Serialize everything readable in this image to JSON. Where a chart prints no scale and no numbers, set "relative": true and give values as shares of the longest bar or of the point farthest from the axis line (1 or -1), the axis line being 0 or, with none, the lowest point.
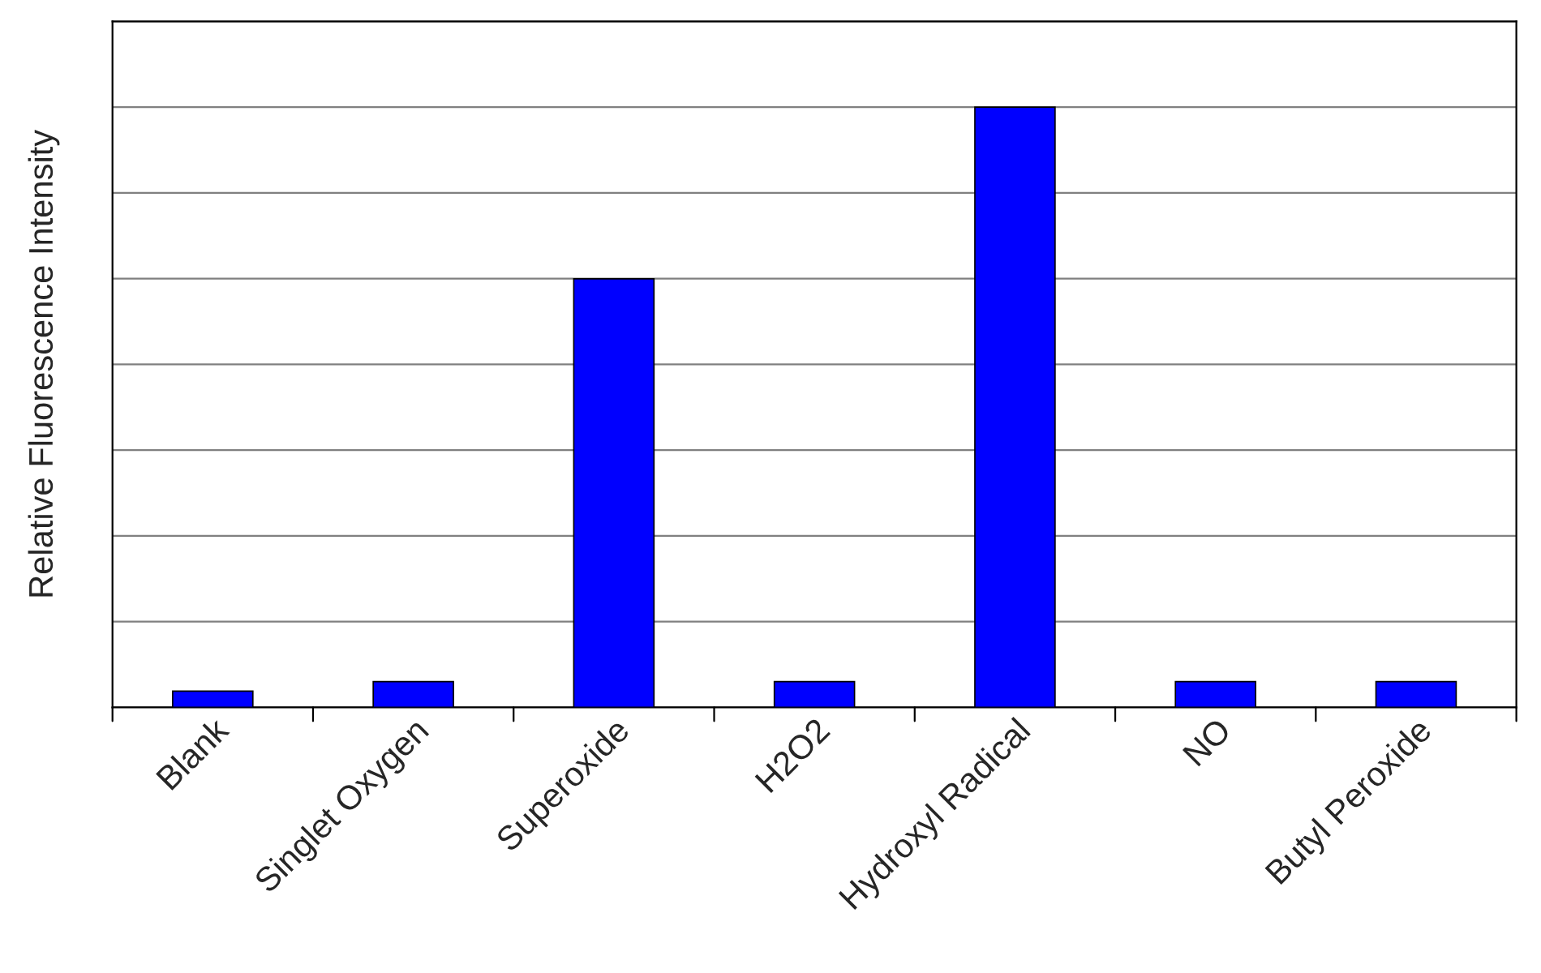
{
  "chart_data": {
    "type": "bar",
    "ylabel": "Relative Fluorescence Intensity",
    "categories": [
      "Blank",
      "Singlet Oxygen",
      "Superoxide",
      "H2O2",
      "Hydroxyl Radical",
      "NO",
      "Butyl Peroxide"
    ],
    "values": [
      0.027,
      0.043,
      0.714,
      0.043,
      1,
      0.043,
      0.043
    ],
    "color": "#0000ff",
    "relative": true,
    "grid": "y",
    "legend": false
  }
}
